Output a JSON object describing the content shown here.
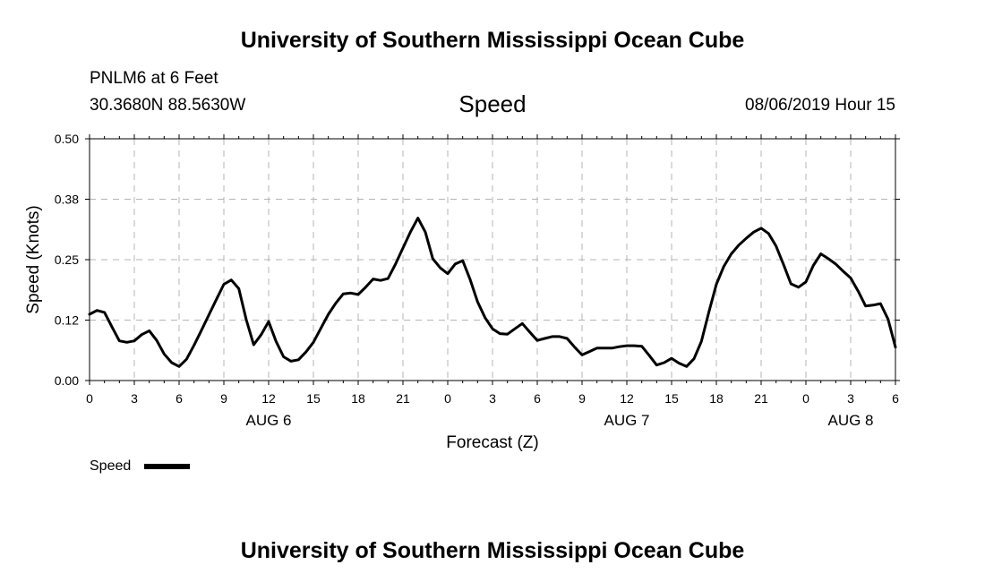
{
  "header": {
    "title": "University of Southern Mississippi Ocean Cube",
    "station": "PNLM6 at 6 Feet",
    "location": "30.3680N 88.5630W",
    "chart_title": "Speed",
    "datetime": "08/06/2019 Hour 15"
  },
  "footer": {
    "title": "University of Southern Mississippi Ocean Cube"
  },
  "chart_data": {
    "type": "line",
    "title": "Speed",
    "xlabel": "Forecast (Z)",
    "ylabel": "Speed (Knots)",
    "xlim": [
      0,
      54
    ],
    "ylim": [
      0,
      0.5
    ],
    "x_ticks": [
      {
        "x": 0,
        "label": "0"
      },
      {
        "x": 3,
        "label": "3"
      },
      {
        "x": 6,
        "label": "6"
      },
      {
        "x": 9,
        "label": "9"
      },
      {
        "x": 12,
        "label": "12"
      },
      {
        "x": 15,
        "label": "15"
      },
      {
        "x": 18,
        "label": "18"
      },
      {
        "x": 21,
        "label": "21"
      },
      {
        "x": 24,
        "label": "0"
      },
      {
        "x": 27,
        "label": "3"
      },
      {
        "x": 30,
        "label": "6"
      },
      {
        "x": 33,
        "label": "9"
      },
      {
        "x": 36,
        "label": "12"
      },
      {
        "x": 39,
        "label": "15"
      },
      {
        "x": 42,
        "label": "18"
      },
      {
        "x": 45,
        "label": "21"
      },
      {
        "x": 48,
        "label": "0"
      },
      {
        "x": 51,
        "label": "3"
      },
      {
        "x": 54,
        "label": "6"
      }
    ],
    "y_ticks": [
      {
        "y": 0,
        "label": "0.00"
      },
      {
        "y": 0.125,
        "label": "0.12"
      },
      {
        "y": 0.25,
        "label": "0.25"
      },
      {
        "y": 0.375,
        "label": "0.38"
      },
      {
        "y": 0.5,
        "label": "0.50"
      }
    ],
    "day_labels": [
      {
        "x": 12,
        "label": "AUG 6"
      },
      {
        "x": 36,
        "label": "AUG 7"
      },
      {
        "x": 51,
        "label": "AUG 8"
      }
    ],
    "grid": true,
    "legend": {
      "position": "bottom-left",
      "entries": [
        "Speed"
      ]
    },
    "series": [
      {
        "name": "Speed",
        "color": "#000000",
        "x": [
          0,
          0.5,
          1,
          1.5,
          2,
          2.5,
          3,
          3.5,
          4,
          4.5,
          5,
          5.5,
          6,
          6.5,
          7,
          7.5,
          8,
          8.5,
          9,
          9.5,
          10,
          10.5,
          11,
          11.5,
          12,
          12.5,
          13,
          13.5,
          14,
          14.5,
          15,
          15.5,
          16,
          16.5,
          17,
          17.5,
          18,
          18.5,
          19,
          19.5,
          20,
          20.5,
          21,
          21.5,
          22,
          22.5,
          23,
          23.5,
          24,
          24.5,
          25,
          25.5,
          26,
          26.5,
          27,
          27.5,
          28,
          28.5,
          29,
          29.5,
          30,
          30.5,
          31,
          31.5,
          32,
          32.5,
          33,
          33.5,
          34,
          34.5,
          35,
          35.5,
          36,
          36.5,
          37,
          37.5,
          38,
          38.5,
          39,
          39.5,
          40,
          40.5,
          41,
          41.5,
          42,
          42.5,
          43,
          43.5,
          44,
          44.5,
          45,
          45.5,
          46,
          46.5,
          47,
          47.5,
          48,
          48.5,
          49,
          49.5,
          50,
          50.5,
          51,
          51.5,
          52,
          52.5,
          53,
          53.5,
          54
        ],
        "y": [
          0.137,
          0.145,
          0.141,
          0.111,
          0.082,
          0.079,
          0.082,
          0.095,
          0.103,
          0.083,
          0.055,
          0.037,
          0.029,
          0.044,
          0.073,
          0.104,
          0.136,
          0.168,
          0.199,
          0.208,
          0.19,
          0.126,
          0.074,
          0.095,
          0.122,
          0.081,
          0.049,
          0.04,
          0.043,
          0.059,
          0.079,
          0.108,
          0.137,
          0.16,
          0.179,
          0.181,
          0.178,
          0.193,
          0.21,
          0.207,
          0.211,
          0.241,
          0.274,
          0.307,
          0.336,
          0.307,
          0.252,
          0.233,
          0.221,
          0.241,
          0.248,
          0.209,
          0.163,
          0.13,
          0.107,
          0.097,
          0.096,
          0.107,
          0.118,
          0.1,
          0.083,
          0.087,
          0.091,
          0.091,
          0.087,
          0.069,
          0.053,
          0.06,
          0.067,
          0.067,
          0.067,
          0.07,
          0.072,
          0.072,
          0.071,
          0.052,
          0.032,
          0.037,
          0.046,
          0.036,
          0.029,
          0.045,
          0.081,
          0.142,
          0.199,
          0.236,
          0.262,
          0.28,
          0.294,
          0.307,
          0.315,
          0.304,
          0.278,
          0.24,
          0.2,
          0.193,
          0.204,
          0.238,
          0.262,
          0.252,
          0.241,
          0.226,
          0.212,
          0.185,
          0.154,
          0.156,
          0.159,
          0.127,
          0.069
        ]
      }
    ]
  }
}
